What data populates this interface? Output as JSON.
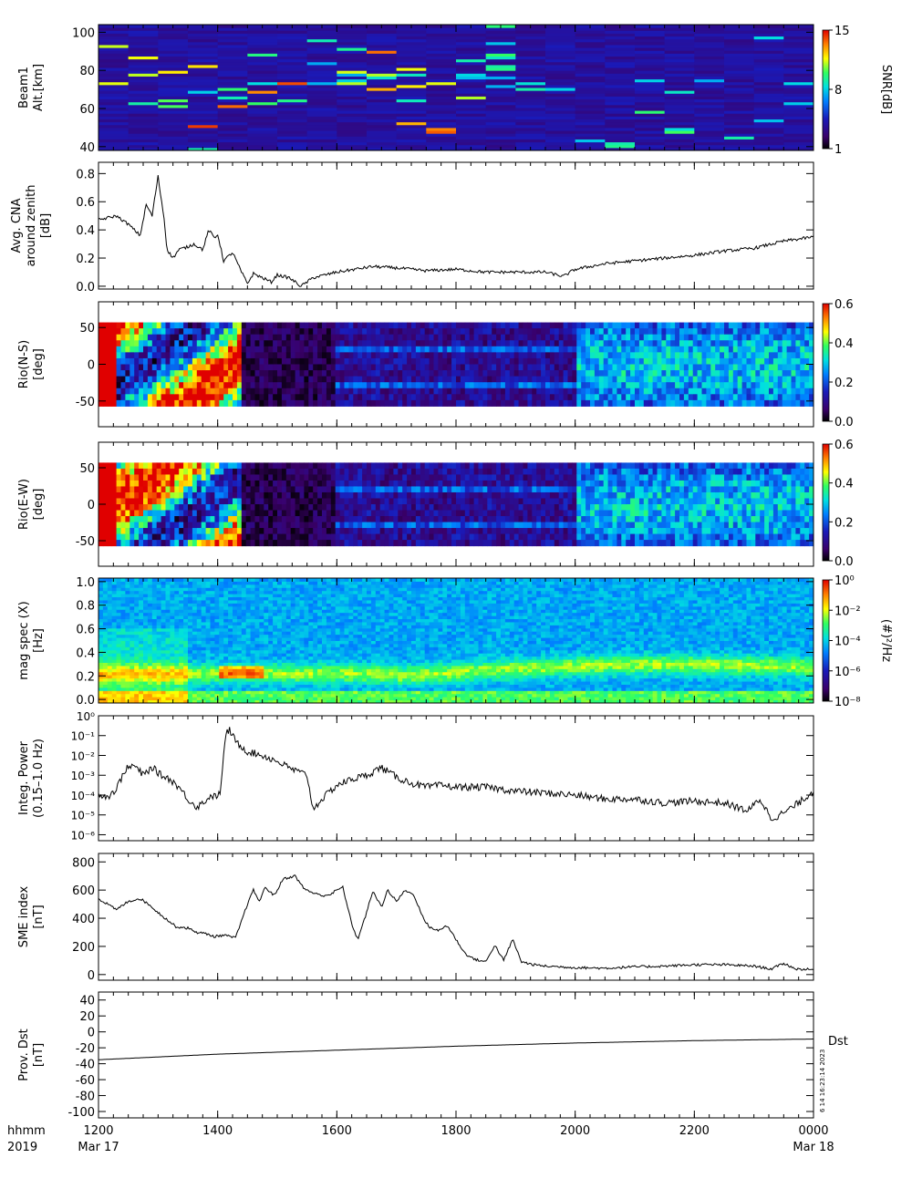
{
  "x_axis": {
    "row1_label": "hhmm",
    "row2_label": "2019",
    "ticks": [
      {
        "label": "1200",
        "sub": "Mar 17",
        "t": 0
      },
      {
        "label": "1400",
        "sub": "",
        "t": 2
      },
      {
        "label": "1600",
        "sub": "",
        "t": 4
      },
      {
        "label": "1800",
        "sub": "",
        "t": 6
      },
      {
        "label": "2000",
        "sub": "",
        "t": 8
      },
      {
        "label": "2200",
        "sub": "",
        "t": 10
      },
      {
        "label": "0000",
        "sub": "Mar 18",
        "t": 12
      }
    ],
    "range_hours": [
      0,
      12
    ]
  },
  "stamp": {
    "text": "6 14 16:23:14 2023",
    "dst_label": "Dst"
  },
  "chart_data": [
    {
      "type": "heatmap",
      "ylabel": [
        "Beam1",
        "Alt.[km]"
      ],
      "yticks": [
        40,
        60,
        80,
        100
      ],
      "ylim": [
        38,
        104
      ],
      "colorbar": {
        "label": "SNR[dB]",
        "ticks": [
          "1",
          "8",
          "15"
        ],
        "range": [
          1,
          15
        ]
      },
      "description_values": {
        "alt_bands_km": [
          65,
          80
        ],
        "max_snr_db": 15
      }
    },
    {
      "type": "line",
      "ylabel": [
        "Avg. CNA",
        "around zenith",
        "[dB]"
      ],
      "yticks": [
        "0.0",
        "0.2",
        "0.4",
        "0.6",
        "0.8"
      ],
      "ylim": [
        -0.02,
        0.88
      ],
      "x": [
        0,
        0.3,
        0.5,
        0.7,
        0.8,
        0.9,
        1.0,
        1.1,
        1.15,
        1.25,
        1.35,
        1.5,
        1.6,
        1.75,
        1.85,
        1.95,
        2.0,
        2.1,
        2.25,
        2.4,
        2.5,
        2.6,
        2.75,
        2.9,
        3.0,
        3.2,
        3.4,
        3.6,
        3.8,
        4.0,
        4.3,
        4.6,
        5.0,
        5.5,
        6.0,
        6.5,
        7.0,
        7.5,
        7.8,
        8.0,
        8.5,
        9.0,
        9.5,
        10.0,
        10.5,
        11.0,
        11.5,
        12.0
      ],
      "y": [
        0.47,
        0.5,
        0.44,
        0.36,
        0.58,
        0.5,
        0.78,
        0.48,
        0.26,
        0.2,
        0.26,
        0.28,
        0.3,
        0.26,
        0.4,
        0.34,
        0.37,
        0.18,
        0.24,
        0.1,
        0.02,
        0.09,
        0.06,
        0.03,
        0.08,
        0.06,
        0.0,
        0.06,
        0.08,
        0.1,
        0.12,
        0.14,
        0.13,
        0.11,
        0.12,
        0.1,
        0.1,
        0.1,
        0.07,
        0.12,
        0.16,
        0.18,
        0.2,
        0.22,
        0.25,
        0.27,
        0.32,
        0.35
      ]
    },
    {
      "type": "heatmap",
      "ylabel": [
        "Rio(N-S)",
        "[deg]"
      ],
      "yticks": [
        "50",
        "0",
        "-50"
      ],
      "ylim": [
        -85,
        85
      ],
      "data_extent": [
        -57,
        57
      ],
      "colorbar": {
        "label": "",
        "ticks": [
          "0.0",
          "0.2",
          "0.4",
          "0.6"
        ],
        "range": [
          0,
          0.72
        ]
      }
    },
    {
      "type": "heatmap",
      "ylabel": [
        "Rio(E-W)",
        "[deg]"
      ],
      "yticks": [
        "50",
        "0",
        "-50"
      ],
      "ylim": [
        -85,
        85
      ],
      "data_extent": [
        -57,
        57
      ],
      "colorbar": {
        "label": "",
        "ticks": [
          "0.0",
          "0.2",
          "0.4",
          "0.6"
        ],
        "range": [
          0,
          0.72
        ]
      }
    },
    {
      "type": "heatmap",
      "ylabel": [
        "mag spec (X)",
        "[Hz]"
      ],
      "yticks": [
        "0.0",
        "0.2",
        "0.4",
        "0.6",
        "0.8",
        "1.0"
      ],
      "ylim": [
        -0.03,
        1.03
      ],
      "colorbar": {
        "label": "(#)²/Hz",
        "ticks": [
          "10⁰",
          "10⁻²",
          "10⁻⁴",
          "10⁻⁶",
          "10⁻⁸"
        ],
        "range_log": [
          -9,
          0
        ]
      }
    },
    {
      "type": "line",
      "scale": "log",
      "ylabel": [
        "Integ. Power",
        "(0.15–1.0 Hz)"
      ],
      "yticks": [
        "10⁰",
        "10⁻¹",
        "10⁻²",
        "10⁻³",
        "10⁻⁴",
        "10⁻⁵",
        "10⁻⁶"
      ],
      "ylim_log": [
        -6.3,
        0
      ],
      "x": [
        0,
        0.15,
        0.3,
        0.45,
        0.6,
        0.75,
        0.9,
        1.05,
        1.2,
        1.35,
        1.5,
        1.65,
        1.75,
        1.9,
        1.95,
        2.05,
        2.1,
        2.15,
        2.2,
        2.3,
        2.5,
        2.75,
        3.0,
        3.25,
        3.5,
        3.6,
        3.75,
        4.0,
        4.25,
        4.5,
        4.75,
        5.0,
        5.25,
        5.5,
        5.75,
        6.0,
        6.5,
        7.0,
        7.5,
        8.0,
        8.5,
        9.0,
        9.5,
        10.0,
        10.5,
        10.9,
        11.1,
        11.3,
        11.5,
        11.75,
        12.0
      ],
      "y": [
        -3.9,
        -4.1,
        -3.7,
        -2.7,
        -2.5,
        -3.0,
        -2.6,
        -3.0,
        -3.2,
        -3.6,
        -4.2,
        -4.6,
        -4.4,
        -4.0,
        -4.1,
        -3.9,
        -1.8,
        -0.9,
        -0.7,
        -1.3,
        -1.8,
        -2.0,
        -2.3,
        -2.7,
        -3.0,
        -4.7,
        -4.2,
        -3.5,
        -3.2,
        -3.0,
        -2.6,
        -3.1,
        -3.4,
        -3.6,
        -3.5,
        -3.6,
        -3.6,
        -3.8,
        -3.9,
        -4.0,
        -4.2,
        -4.2,
        -4.4,
        -4.3,
        -4.4,
        -4.8,
        -4.2,
        -5.2,
        -4.9,
        -4.4,
        -3.8
      ]
    },
    {
      "type": "line",
      "ylabel": [
        "SME index",
        "[nT]"
      ],
      "yticks": [
        "0",
        "200",
        "400",
        "600",
        "800"
      ],
      "ylim": [
        -40,
        860
      ],
      "x": [
        0,
        0.15,
        0.3,
        0.5,
        0.7,
        0.9,
        1.0,
        1.15,
        1.3,
        1.5,
        1.65,
        1.8,
        1.95,
        2.1,
        2.3,
        2.5,
        2.6,
        2.7,
        2.8,
        2.95,
        3.1,
        3.3,
        3.45,
        3.6,
        3.75,
        3.9,
        4.0,
        4.1,
        4.25,
        4.35,
        4.5,
        4.6,
        4.75,
        4.85,
        5.0,
        5.15,
        5.3,
        5.45,
        5.55,
        5.7,
        5.85,
        6.0,
        6.15,
        6.3,
        6.5,
        6.65,
        6.8,
        6.95,
        7.1,
        7.3,
        7.5,
        8.0,
        8.5,
        9.0,
        9.5,
        10.0,
        10.5,
        11.0,
        11.3,
        11.5,
        11.7,
        12.0
      ],
      "y": [
        540,
        500,
        460,
        520,
        540,
        480,
        440,
        390,
        340,
        330,
        300,
        290,
        270,
        280,
        260,
        500,
        600,
        520,
        620,
        560,
        680,
        700,
        610,
        580,
        560,
        570,
        600,
        620,
        360,
        250,
        440,
        590,
        480,
        600,
        520,
        600,
        560,
        400,
        340,
        310,
        350,
        250,
        150,
        110,
        90,
        210,
        100,
        250,
        90,
        70,
        60,
        50,
        45,
        55,
        60,
        70,
        70,
        60,
        40,
        80,
        40,
        35
      ]
    },
    {
      "type": "line",
      "ylabel": [
        "Prov. Dst",
        "[nT]"
      ],
      "yticks": [
        "40",
        "20",
        "0",
        "-20",
        "-40",
        "-60",
        "-80",
        "-100"
      ],
      "ylim": [
        -108,
        50
      ],
      "x": [
        0,
        2,
        4,
        6,
        8,
        10,
        12
      ],
      "y": [
        -35,
        -28,
        -23,
        -18,
        -14,
        -11,
        -9
      ]
    }
  ]
}
